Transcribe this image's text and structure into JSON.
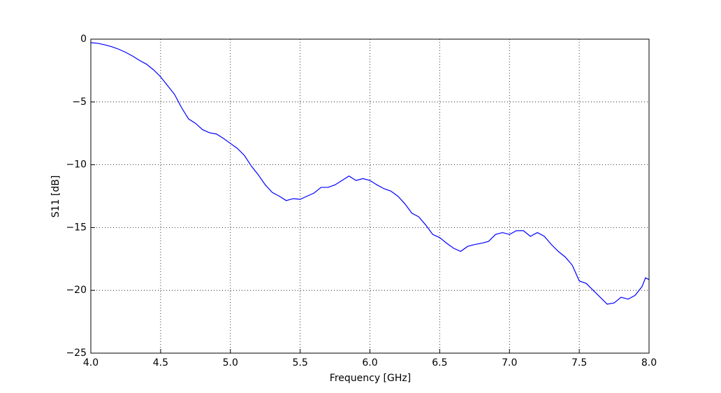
{
  "chart_data": {
    "type": "line",
    "xlabel": "Frequency [GHz]",
    "ylabel": "S11 [dB]",
    "x": [
      4.0,
      4.05,
      4.1,
      4.15,
      4.2,
      4.25,
      4.3,
      4.35,
      4.4,
      4.45,
      4.5,
      4.55,
      4.6,
      4.65,
      4.7,
      4.75,
      4.8,
      4.85,
      4.9,
      4.95,
      5.0,
      5.05,
      5.1,
      5.15,
      5.2,
      5.25,
      5.3,
      5.35,
      5.4,
      5.45,
      5.5,
      5.55,
      5.6,
      5.65,
      5.7,
      5.75,
      5.8,
      5.85,
      5.9,
      5.95,
      6.0,
      6.05,
      6.1,
      6.15,
      6.2,
      6.25,
      6.3,
      6.35,
      6.4,
      6.45,
      6.5,
      6.55,
      6.6,
      6.65,
      6.7,
      6.75,
      6.8,
      6.85,
      6.9,
      6.95,
      7.0,
      7.05,
      7.1,
      7.15,
      7.2,
      7.25,
      7.3,
      7.35,
      7.4,
      7.45,
      7.5,
      7.55,
      7.6,
      7.65,
      7.7,
      7.75,
      7.8,
      7.85,
      7.9,
      7.95,
      7.975,
      8.0
    ],
    "values": [
      -0.28,
      -0.33,
      -0.45,
      -0.6,
      -0.8,
      -1.05,
      -1.35,
      -1.7,
      -2.0,
      -2.45,
      -3.0,
      -3.7,
      -4.4,
      -5.45,
      -6.35,
      -6.7,
      -7.2,
      -7.45,
      -7.55,
      -7.9,
      -8.3,
      -8.7,
      -9.25,
      -10.1,
      -10.8,
      -11.6,
      -12.2,
      -12.5,
      -12.85,
      -12.7,
      -12.75,
      -12.5,
      -12.25,
      -11.8,
      -11.8,
      -11.6,
      -11.25,
      -10.9,
      -11.25,
      -11.1,
      -11.25,
      -11.6,
      -11.9,
      -12.1,
      -12.5,
      -13.1,
      -13.85,
      -14.15,
      -14.8,
      -15.55,
      -15.8,
      -16.25,
      -16.65,
      -16.9,
      -16.5,
      -16.35,
      -16.25,
      -16.1,
      -15.55,
      -15.4,
      -15.55,
      -15.25,
      -15.25,
      -15.7,
      -15.4,
      -15.7,
      -16.35,
      -16.9,
      -17.35,
      -18.0,
      -19.25,
      -19.45,
      -20.0,
      -20.55,
      -21.1,
      -21.0,
      -20.55,
      -20.7,
      -20.4,
      -19.7,
      -19.0,
      -19.15
    ],
    "color": "#0000ff",
    "xlim": [
      4.0,
      8.0
    ],
    "xticks": [
      {
        "value": 4,
        "label": "4.0"
      },
      4.5,
      {
        "value": 5,
        "label": "5.0"
      },
      5.5,
      {
        "value": 6,
        "label": "6.0"
      },
      6.5,
      {
        "value": 7,
        "label": "7.0"
      },
      7.5,
      {
        "value": 8,
        "label": "8.0"
      }
    ],
    "ylim": [
      -25,
      0
    ],
    "yticks": [
      {
        "value": -25,
        "label": "−25"
      },
      {
        "value": -20,
        "label": "−20"
      },
      {
        "value": -15,
        "label": "−15"
      },
      {
        "value": -10,
        "label": "−10"
      },
      {
        "value": -5,
        "label": "−5"
      },
      0
    ],
    "grid": true
  }
}
